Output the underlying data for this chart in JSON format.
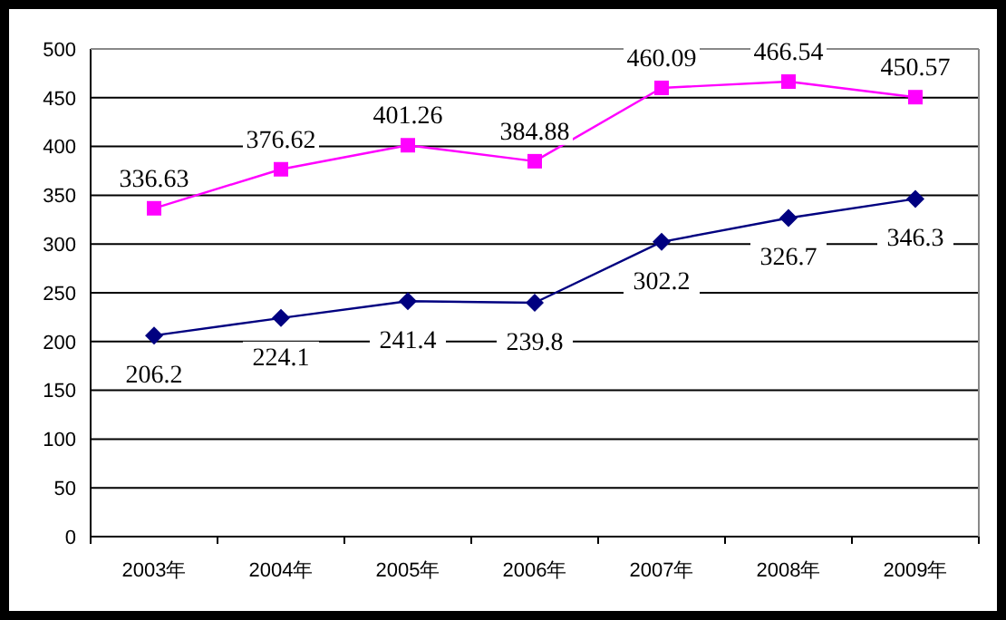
{
  "chart_data": {
    "type": "line",
    "categories": [
      "2003年",
      "2004年",
      "2005年",
      "2006年",
      "2007年",
      "2008年",
      "2009年"
    ],
    "series": [
      {
        "color": "#ff00ff",
        "marker": "square",
        "values": [
          336.63,
          376.62,
          401.26,
          384.88,
          460.09,
          466.54,
          450.57
        ]
      },
      {
        "color": "#000080",
        "marker": "diamond",
        "values": [
          206.2,
          224.1,
          241.4,
          239.8,
          302.2,
          326.7,
          346.3
        ]
      }
    ],
    "ylim": [
      0,
      500
    ],
    "yticks": [
      0,
      50,
      100,
      150,
      200,
      250,
      300,
      350,
      400,
      450,
      500
    ],
    "grid": "y",
    "data_labels": true
  }
}
